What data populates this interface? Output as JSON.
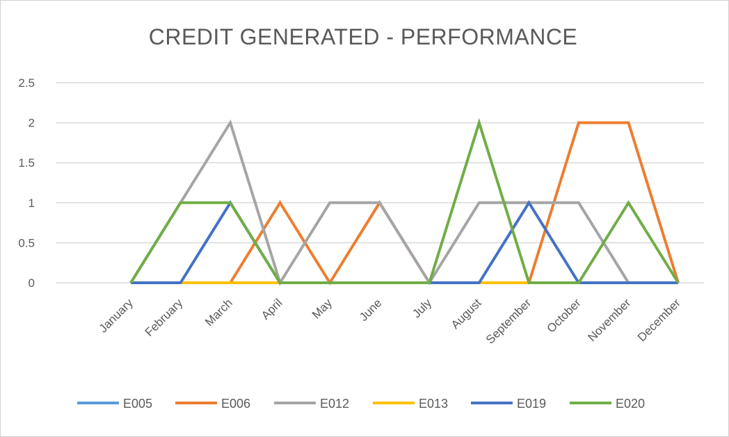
{
  "chart_data": {
    "type": "line",
    "title": "CREDIT GENERATED - PERFORMANCE",
    "categories": [
      "January",
      "February",
      "March",
      "April",
      "May",
      "June",
      "July",
      "August",
      "September",
      "October",
      "November",
      "December"
    ],
    "ylim": [
      0,
      2.5
    ],
    "yticks": [
      "0",
      "0.5",
      "1",
      "1.5",
      "2",
      "2.5"
    ],
    "grid": true,
    "legend_position": "bottom",
    "series": [
      {
        "name": "E005",
        "color": "#5B9BD5",
        "values": [
          0,
          0,
          0,
          0,
          0,
          0,
          0,
          0,
          0,
          0,
          0,
          0
        ]
      },
      {
        "name": "E006",
        "color": "#ED7D31",
        "values": [
          0,
          0,
          0,
          1,
          0,
          1,
          0,
          0,
          0,
          2,
          2,
          0
        ]
      },
      {
        "name": "E012",
        "color": "#A5A5A5",
        "values": [
          0,
          1,
          2,
          0,
          1,
          1,
          0,
          1,
          1,
          1,
          0,
          0
        ]
      },
      {
        "name": "E013",
        "color": "#FFC000",
        "values": [
          0,
          0,
          0,
          0,
          0,
          0,
          0,
          0,
          0,
          0,
          0,
          0
        ]
      },
      {
        "name": "E019",
        "color": "#4472C4",
        "values": [
          0,
          0,
          1,
          0,
          0,
          0,
          0,
          0,
          1,
          0,
          0,
          0
        ]
      },
      {
        "name": "E020",
        "color": "#70AD47",
        "values": [
          0,
          1,
          1,
          0,
          0,
          0,
          0,
          2,
          0,
          0,
          1,
          0
        ]
      }
    ]
  }
}
